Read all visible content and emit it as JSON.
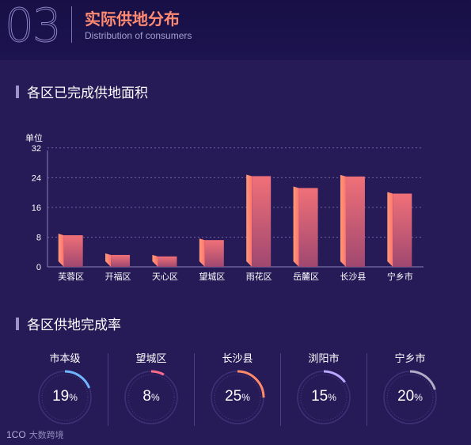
{
  "header": {
    "number": "03",
    "title": "实际供地分布",
    "subtitle": "Distribution of consumers"
  },
  "section1": {
    "title": "各区已完成供地面积"
  },
  "section2": {
    "title": "各区供地完成率"
  },
  "chart_data": {
    "type": "bar",
    "title": "各区已完成供地面积",
    "ylabel": "单位",
    "categories": [
      "芙蓉区",
      "开福区",
      "天心区",
      "望城区",
      "雨花区",
      "岳麓区",
      "长沙县",
      "宁乡市"
    ],
    "values": [
      8.5,
      3.2,
      2.8,
      7.2,
      24.4,
      21.2,
      24.3,
      19.7
    ],
    "ylim": [
      0,
      36
    ],
    "yticks": [
      0,
      8,
      16,
      24,
      32
    ],
    "grid": true,
    "bar_color_top": "#f07078",
    "bar_color_bottom": "#a04870"
  },
  "gauges": [
    {
      "label": "市本级",
      "value": 19,
      "unit": "%",
      "color": "#6fb6ff"
    },
    {
      "label": "望城区",
      "value": 8,
      "unit": "%",
      "color": "#ff6b8a"
    },
    {
      "label": "长沙县",
      "value": 25,
      "unit": "%",
      "color": "#ff8a6a"
    },
    {
      "label": "浏阳市",
      "value": 15,
      "unit": "%",
      "color": "#b9a6ff"
    },
    {
      "label": "宁乡市",
      "value": 20,
      "unit": "%",
      "color": "#b0adc7"
    }
  ],
  "watermark": {
    "logo": "1CO",
    "text": "大数跨境"
  }
}
